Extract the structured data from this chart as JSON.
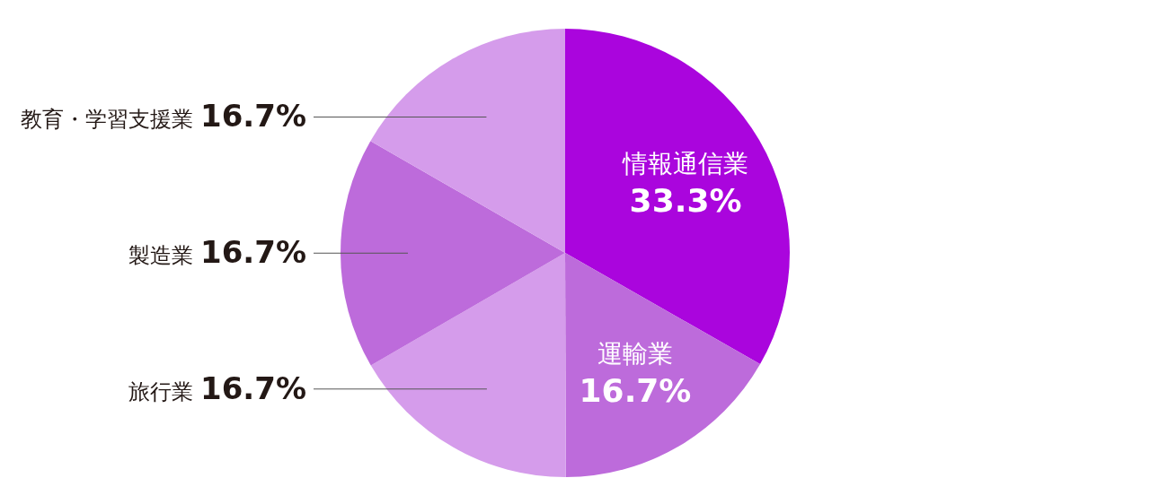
{
  "chart_data": {
    "type": "pie",
    "categories": [
      "情報通信業",
      "運輸業",
      "旅行業",
      "製造業",
      "教育・学習支援業"
    ],
    "values": [
      33.3,
      16.7,
      16.7,
      16.7,
      16.7
    ],
    "colors": [
      "#aa05dd",
      "#bd6bdb",
      "#d59ceb",
      "#bd6bdb",
      "#d59ceb"
    ],
    "value_labels": [
      "33.3%",
      "16.7%",
      "16.7%",
      "16.7%",
      "16.7%"
    ]
  }
}
